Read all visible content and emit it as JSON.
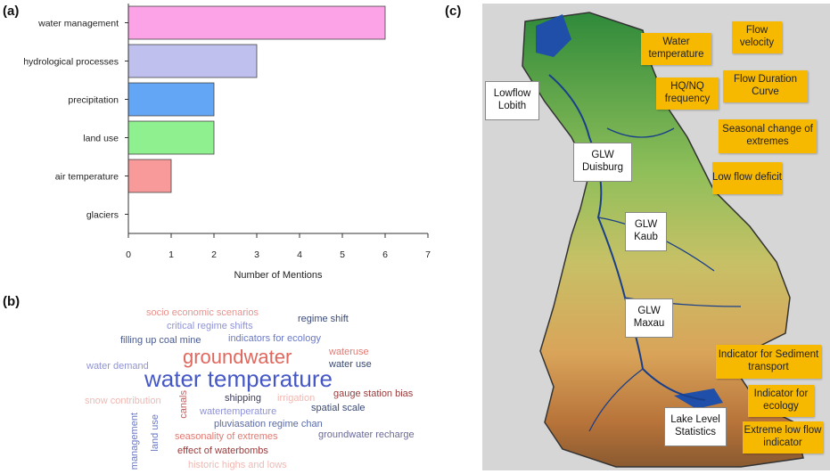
{
  "panels": {
    "a": "(a)",
    "b": "(b)",
    "c": "(c)"
  },
  "chart_data": {
    "type": "bar",
    "orientation": "horizontal",
    "categories": [
      "water management",
      "hydrological processes",
      "precipitation",
      "land use",
      "air temperature",
      "glaciers"
    ],
    "values": [
      6,
      3,
      2,
      2,
      1,
      0
    ],
    "colors": [
      "#fba3e6",
      "#bfc0ee",
      "#63a6f5",
      "#8ff08f",
      "#f99a9a",
      "#cccccc"
    ],
    "xlabel": "Number of Mentions",
    "xlim": [
      0,
      7
    ],
    "xticks": [
      0,
      1,
      2,
      3,
      4,
      5,
      6,
      7
    ],
    "grid": false
  },
  "wordcloud": [
    {
      "text": "socio economic scenarios",
      "color": "#e8918d"
    },
    {
      "text": "regime shift",
      "color": "#3a4a78"
    },
    {
      "text": "critical regime shifts",
      "color": "#8f93d6"
    },
    {
      "text": "filling up coal mine",
      "color": "#4a5a8e"
    },
    {
      "text": "indicators for ecology",
      "color": "#6a78c8"
    },
    {
      "text": "wateruse",
      "color": "#e07a72"
    },
    {
      "text": "groundwater",
      "color": "#e0675d"
    },
    {
      "text": "water demand",
      "color": "#8f93d6"
    },
    {
      "text": "water use",
      "color": "#3a4a78"
    },
    {
      "text": "water temperature",
      "color": "#4658c6"
    },
    {
      "text": "snow contribution",
      "color": "#f0b8b2"
    },
    {
      "text": "canals",
      "color": "#c06060"
    },
    {
      "text": "shipping",
      "color": "#3a3a5a"
    },
    {
      "text": "irrigation",
      "color": "#f0b8b2"
    },
    {
      "text": "gauge station bias",
      "color": "#9a3a3a"
    },
    {
      "text": "watertemperature",
      "color": "#8f93d6"
    },
    {
      "text": "spatial scale",
      "color": "#3a4a78"
    },
    {
      "text": "pluviasation regime chan",
      "color": "#5a6aa8"
    },
    {
      "text": "management",
      "color": "#6a78c8"
    },
    {
      "text": "land use",
      "color": "#6a78c8"
    },
    {
      "text": "seasonality of extremes",
      "color": "#e07a72"
    },
    {
      "text": "groundwater recharge",
      "color": "#6a6a9a"
    },
    {
      "text": "effect of waterbombs",
      "color": "#9a3a3a"
    },
    {
      "text": "historic highs and lows",
      "color": "#f0b8b2"
    }
  ],
  "map": {
    "gauges": [
      "Lowflow Lobith",
      "GLW Duisburg",
      "GLW Kaub",
      "GLW Maxau",
      "Lake Level Statistics"
    ],
    "notes": [
      "Water temperature",
      "Flow velocity",
      "HQ/NQ frequency",
      "Flow Duration Curve",
      "Seasonal change of extremes",
      "Low flow deficit",
      "Indicator for Sediment transport",
      "Indicator for ecology",
      "Extreme low flow indicator"
    ]
  }
}
